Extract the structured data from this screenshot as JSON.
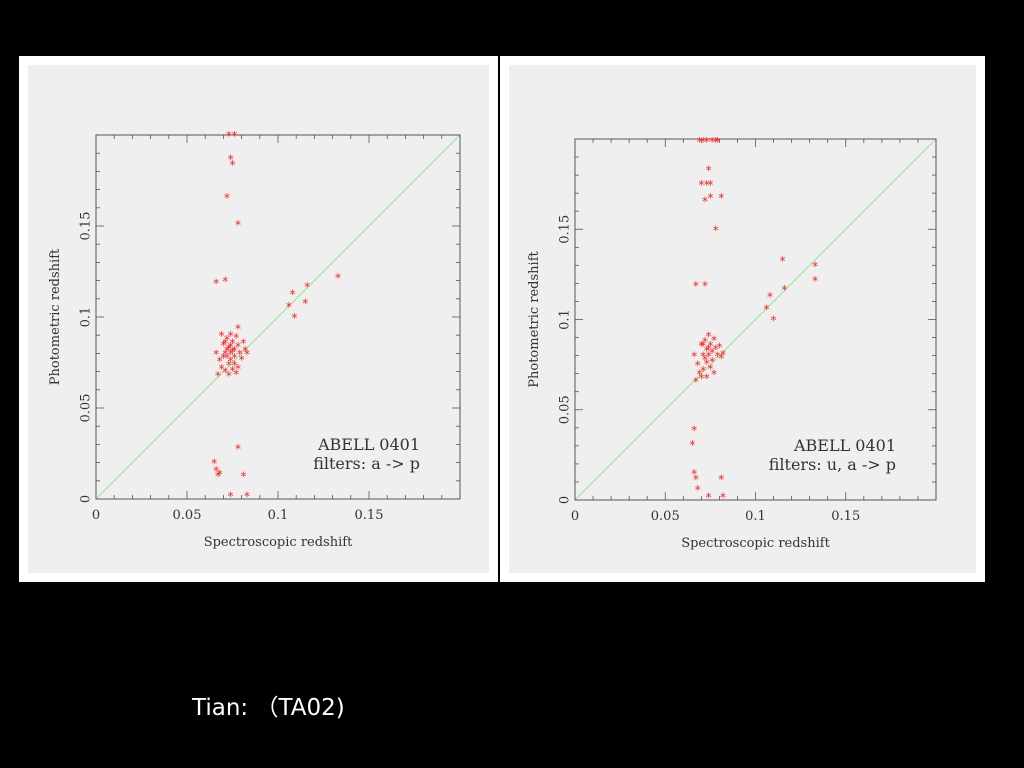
{
  "caption": "Tian: （TA02)",
  "colors": {
    "background": "#000000",
    "panel": "#efefef",
    "points": "#ff2020",
    "diagonal": "#90e890",
    "axis": "#555555"
  },
  "chart_data": [
    {
      "type": "scatter",
      "xlabel": "Spectroscopic redshift",
      "ylabel": "Photometric redshift",
      "xlim": [
        0,
        0.2
      ],
      "ylim": [
        0,
        0.2
      ],
      "xticks": [
        "0",
        "0.05",
        "0.1",
        "0.15"
      ],
      "yticks": [
        "0",
        "0.05",
        "0.1",
        "0.15"
      ],
      "annotation": [
        "ABELL 0401",
        "filters: a -> p"
      ],
      "reference_line": "y = x",
      "marker": "*",
      "points": [
        [
          0.073,
          0.2
        ],
        [
          0.076,
          0.2
        ],
        [
          0.074,
          0.187
        ],
        [
          0.075,
          0.184
        ],
        [
          0.072,
          0.166
        ],
        [
          0.078,
          0.151
        ],
        [
          0.066,
          0.119
        ],
        [
          0.071,
          0.12
        ],
        [
          0.106,
          0.106
        ],
        [
          0.108,
          0.113
        ],
        [
          0.109,
          0.1
        ],
        [
          0.116,
          0.117
        ],
        [
          0.115,
          0.108
        ],
        [
          0.133,
          0.122
        ],
        [
          0.066,
          0.08
        ],
        [
          0.068,
          0.076
        ],
        [
          0.069,
          0.072
        ],
        [
          0.07,
          0.085
        ],
        [
          0.071,
          0.08
        ],
        [
          0.071,
          0.07
        ],
        [
          0.072,
          0.088
        ],
        [
          0.072,
          0.078
        ],
        [
          0.073,
          0.083
        ],
        [
          0.073,
          0.074
        ],
        [
          0.073,
          0.068
        ],
        [
          0.074,
          0.09
        ],
        [
          0.074,
          0.08
        ],
        [
          0.074,
          0.076
        ],
        [
          0.075,
          0.086
        ],
        [
          0.075,
          0.071
        ],
        [
          0.076,
          0.082
        ],
        [
          0.076,
          0.078
        ],
        [
          0.077,
          0.089
        ],
        [
          0.077,
          0.069
        ],
        [
          0.078,
          0.084
        ],
        [
          0.078,
          0.094
        ],
        [
          0.079,
          0.08
        ],
        [
          0.08,
          0.077
        ],
        [
          0.081,
          0.086
        ],
        [
          0.082,
          0.082
        ],
        [
          0.083,
          0.08
        ],
        [
          0.075,
          0.081
        ],
        [
          0.072,
          0.082
        ],
        [
          0.07,
          0.078
        ],
        [
          0.067,
          0.068
        ],
        [
          0.069,
          0.09
        ],
        [
          0.076,
          0.074
        ],
        [
          0.078,
          0.072
        ],
        [
          0.074,
          0.084
        ],
        [
          0.071,
          0.086
        ],
        [
          0.065,
          0.02
        ],
        [
          0.066,
          0.016
        ],
        [
          0.067,
          0.013
        ],
        [
          0.068,
          0.014
        ],
        [
          0.078,
          0.028
        ],
        [
          0.081,
          0.013
        ],
        [
          0.074,
          0.002
        ],
        [
          0.083,
          0.002
        ]
      ]
    },
    {
      "type": "scatter",
      "xlabel": "Spectroscopic redshift",
      "ylabel": "Photometric redshift",
      "xlim": [
        0,
        0.2
      ],
      "ylim": [
        0,
        0.2
      ],
      "xticks": [
        "0",
        "0.05",
        "0.1",
        "0.15"
      ],
      "yticks": [
        "0",
        "0.05",
        "0.1",
        "0.15"
      ],
      "annotation": [
        "ABELL 0401",
        "filters: u, a -> p"
      ],
      "reference_line": "y = x",
      "marker": "*",
      "points": [
        [
          0.069,
          0.199
        ],
        [
          0.071,
          0.199
        ],
        [
          0.073,
          0.199
        ],
        [
          0.076,
          0.199
        ],
        [
          0.078,
          0.199
        ],
        [
          0.079,
          0.199
        ],
        [
          0.074,
          0.183
        ],
        [
          0.07,
          0.175
        ],
        [
          0.073,
          0.175
        ],
        [
          0.075,
          0.175
        ],
        [
          0.072,
          0.166
        ],
        [
          0.075,
          0.168
        ],
        [
          0.081,
          0.168
        ],
        [
          0.078,
          0.15
        ],
        [
          0.067,
          0.119
        ],
        [
          0.072,
          0.119
        ],
        [
          0.106,
          0.106
        ],
        [
          0.108,
          0.113
        ],
        [
          0.11,
          0.1
        ],
        [
          0.116,
          0.117
        ],
        [
          0.115,
          0.133
        ],
        [
          0.133,
          0.122
        ],
        [
          0.133,
          0.13
        ],
        [
          0.066,
          0.08
        ],
        [
          0.068,
          0.075
        ],
        [
          0.069,
          0.07
        ],
        [
          0.07,
          0.086
        ],
        [
          0.071,
          0.08
        ],
        [
          0.071,
          0.072
        ],
        [
          0.072,
          0.088
        ],
        [
          0.072,
          0.078
        ],
        [
          0.073,
          0.083
        ],
        [
          0.073,
          0.068
        ],
        [
          0.074,
          0.091
        ],
        [
          0.074,
          0.08
        ],
        [
          0.075,
          0.086
        ],
        [
          0.075,
          0.073
        ],
        [
          0.076,
          0.082
        ],
        [
          0.076,
          0.077
        ],
        [
          0.077,
          0.089
        ],
        [
          0.077,
          0.07
        ],
        [
          0.078,
          0.084
        ],
        [
          0.079,
          0.08
        ],
        [
          0.08,
          0.085
        ],
        [
          0.081,
          0.079
        ],
        [
          0.082,
          0.081
        ],
        [
          0.074,
          0.084
        ],
        [
          0.071,
          0.086
        ],
        [
          0.07,
          0.068
        ],
        [
          0.067,
          0.066
        ],
        [
          0.073,
          0.076
        ],
        [
          0.066,
          0.039
        ],
        [
          0.065,
          0.031
        ],
        [
          0.066,
          0.015
        ],
        [
          0.067,
          0.012
        ],
        [
          0.068,
          0.006
        ],
        [
          0.074,
          0.002
        ],
        [
          0.081,
          0.012
        ],
        [
          0.082,
          0.002
        ]
      ]
    }
  ]
}
